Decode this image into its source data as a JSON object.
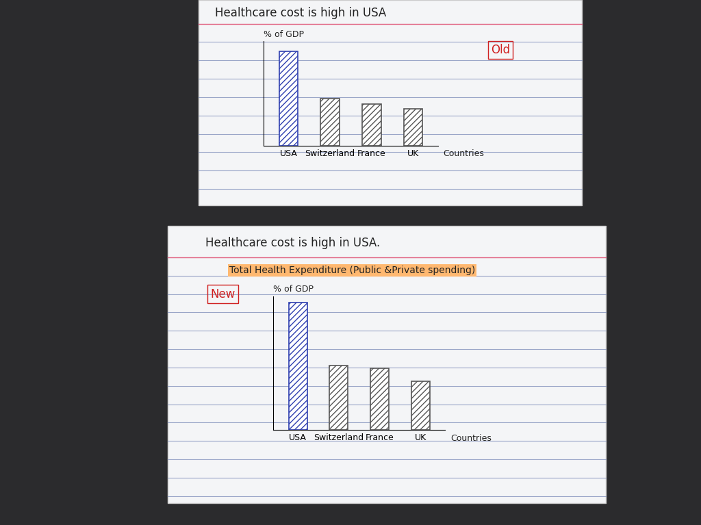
{
  "chart_data": [
    {
      "type": "bar",
      "title": "Healthcare cost is high in USA",
      "annotations": [
        "Old"
      ],
      "y_label": "% of GDP",
      "x_label": "Countries",
      "categories": [
        "USA",
        "Switzerland",
        "France",
        "UK"
      ],
      "values": [
        18,
        9,
        8,
        7.1
      ],
      "colors": [
        "#2f3fb0",
        "#555555",
        "#555555",
        "#555555"
      ],
      "ylim": [
        0,
        20
      ],
      "tick_labels": "x"
    },
    {
      "type": "bar",
      "title": "Healthcare cost is high in USA.",
      "subtitle": "Total Health Expenditure (Public &Private spending)",
      "annotations": [
        "New"
      ],
      "y_label": "% of GDP",
      "x_label": "Countries",
      "categories": [
        "USA",
        "Switzerland",
        "France",
        "UK"
      ],
      "values": [
        19,
        9.6,
        9.2,
        7.3
      ],
      "colors": [
        "#2f3fb0",
        "#555555",
        "#555555",
        "#555555"
      ],
      "ylim": [
        0,
        20
      ],
      "tick_labels": "x"
    }
  ]
}
